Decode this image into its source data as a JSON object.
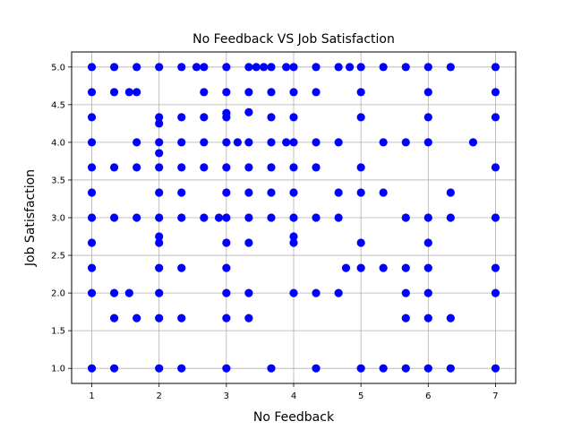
{
  "chart_data": {
    "type": "scatter",
    "title": "No Feedback VS Job Satisfaction",
    "xlabel": "No Feedback",
    "ylabel": "Job Satisfaction",
    "xlim": [
      0.7,
      7.3
    ],
    "ylim": [
      0.8,
      5.2
    ],
    "xticks": [
      1,
      2,
      3,
      4,
      5,
      6,
      7
    ],
    "yticks": [
      1.0,
      1.5,
      2.0,
      2.5,
      3.0,
      3.5,
      4.0,
      4.5,
      5.0
    ],
    "grid": true,
    "color": "#0000ff",
    "points": [
      [
        1,
        5
      ],
      [
        1,
        4.667
      ],
      [
        1,
        4.333
      ],
      [
        1,
        4
      ],
      [
        1,
        3.667
      ],
      [
        1,
        3.333
      ],
      [
        1,
        3
      ],
      [
        1,
        2.667
      ],
      [
        1,
        2.333
      ],
      [
        1,
        2
      ],
      [
        1,
        1
      ],
      [
        1.333,
        5
      ],
      [
        1.333,
        4.667
      ],
      [
        1.333,
        3.667
      ],
      [
        1.333,
        3
      ],
      [
        1.333,
        2
      ],
      [
        1.333,
        1.667
      ],
      [
        1.333,
        1
      ],
      [
        1.556,
        4.667
      ],
      [
        1.556,
        2
      ],
      [
        1.667,
        5
      ],
      [
        1.667,
        4.667
      ],
      [
        1.667,
        4
      ],
      [
        1.667,
        3.667
      ],
      [
        1.667,
        3
      ],
      [
        1.667,
        1.667
      ],
      [
        2,
        5
      ],
      [
        2,
        4.333
      ],
      [
        2,
        4.25
      ],
      [
        2,
        4
      ],
      [
        2,
        3.857
      ],
      [
        2,
        3.667
      ],
      [
        2,
        3.333
      ],
      [
        2,
        3
      ],
      [
        2,
        2.75
      ],
      [
        2,
        2.667
      ],
      [
        2,
        2.333
      ],
      [
        2,
        2
      ],
      [
        2,
        1.667
      ],
      [
        2,
        1
      ],
      [
        2.333,
        5
      ],
      [
        2.333,
        4.333
      ],
      [
        2.333,
        4
      ],
      [
        2.333,
        3.667
      ],
      [
        2.333,
        3.333
      ],
      [
        2.333,
        3
      ],
      [
        2.333,
        2.333
      ],
      [
        2.333,
        1.667
      ],
      [
        2.333,
        1
      ],
      [
        2.556,
        5
      ],
      [
        2.667,
        5
      ],
      [
        2.667,
        4.667
      ],
      [
        2.667,
        4.333
      ],
      [
        2.667,
        4
      ],
      [
        2.667,
        3.667
      ],
      [
        2.667,
        3
      ],
      [
        2.889,
        3
      ],
      [
        3,
        5
      ],
      [
        3,
        4.667
      ],
      [
        3,
        4.389
      ],
      [
        3,
        4.333
      ],
      [
        3,
        4
      ],
      [
        3,
        3.667
      ],
      [
        3,
        3.333
      ],
      [
        3,
        3
      ],
      [
        3,
        2.667
      ],
      [
        3,
        2.333
      ],
      [
        3,
        2
      ],
      [
        3,
        1.667
      ],
      [
        3,
        1
      ],
      [
        3.167,
        4
      ],
      [
        3.333,
        5
      ],
      [
        3.333,
        4.667
      ],
      [
        3.333,
        4.4
      ],
      [
        3.333,
        4
      ],
      [
        3.333,
        3.667
      ],
      [
        3.333,
        3.333
      ],
      [
        3.333,
        3
      ],
      [
        3.333,
        2.667
      ],
      [
        3.333,
        2
      ],
      [
        3.333,
        1.667
      ],
      [
        3.444,
        5
      ],
      [
        3.556,
        5
      ],
      [
        3.667,
        5
      ],
      [
        3.667,
        4.667
      ],
      [
        3.667,
        4.333
      ],
      [
        3.667,
        4
      ],
      [
        3.667,
        3.667
      ],
      [
        3.667,
        3.333
      ],
      [
        3.667,
        3
      ],
      [
        3.667,
        1
      ],
      [
        3.889,
        5
      ],
      [
        3.889,
        4
      ],
      [
        4,
        5
      ],
      [
        4,
        4.667
      ],
      [
        4,
        4.333
      ],
      [
        4,
        4
      ],
      [
        4,
        3.667
      ],
      [
        4,
        3.333
      ],
      [
        4,
        3
      ],
      [
        4,
        2.75
      ],
      [
        4,
        2.667
      ],
      [
        4,
        2
      ],
      [
        4.333,
        5
      ],
      [
        4.333,
        4.667
      ],
      [
        4.333,
        4
      ],
      [
        4.333,
        3.667
      ],
      [
        4.333,
        3
      ],
      [
        4.333,
        2
      ],
      [
        4.333,
        1
      ],
      [
        4.667,
        5
      ],
      [
        4.667,
        4
      ],
      [
        4.667,
        3.333
      ],
      [
        4.667,
        3
      ],
      [
        4.667,
        2
      ],
      [
        4.778,
        2.333
      ],
      [
        4.833,
        5
      ],
      [
        5,
        5
      ],
      [
        5,
        4.667
      ],
      [
        5,
        4.333
      ],
      [
        5,
        3.667
      ],
      [
        5,
        3.333
      ],
      [
        5,
        2.667
      ],
      [
        5,
        2.333
      ],
      [
        5,
        1
      ],
      [
        5.333,
        5
      ],
      [
        5.333,
        4
      ],
      [
        5.333,
        3.333
      ],
      [
        5.333,
        2.333
      ],
      [
        5.333,
        1
      ],
      [
        5.667,
        5
      ],
      [
        5.667,
        4
      ],
      [
        5.667,
        3
      ],
      [
        5.667,
        2.333
      ],
      [
        5.667,
        2
      ],
      [
        5.667,
        1.667
      ],
      [
        5.667,
        1
      ],
      [
        6,
        5
      ],
      [
        6,
        4.667
      ],
      [
        6,
        4.333
      ],
      [
        6,
        4
      ],
      [
        6,
        3
      ],
      [
        6,
        2.667
      ],
      [
        6,
        2.333
      ],
      [
        6,
        2
      ],
      [
        6,
        1.667
      ],
      [
        6,
        1
      ],
      [
        6.333,
        5
      ],
      [
        6.333,
        3.333
      ],
      [
        6.333,
        3
      ],
      [
        6.333,
        1.667
      ],
      [
        6.333,
        1
      ],
      [
        6.667,
        4
      ],
      [
        7,
        5
      ],
      [
        7,
        4.667
      ],
      [
        7,
        4.333
      ],
      [
        7,
        3.667
      ],
      [
        7,
        3
      ],
      [
        7,
        2.333
      ],
      [
        7,
        2
      ],
      [
        7,
        1
      ]
    ]
  }
}
